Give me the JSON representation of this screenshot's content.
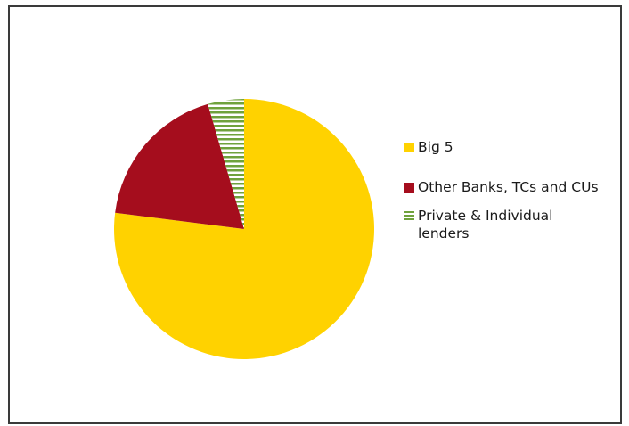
{
  "chart_data": {
    "type": "pie",
    "title": "",
    "slices": [
      {
        "label": "Big 5",
        "value": 77,
        "color": "#FFD200",
        "pattern": "solid"
      },
      {
        "label": "Other Banks, TCs and CUs",
        "value": 18.5,
        "color": "#A50D1D",
        "pattern": "solid"
      },
      {
        "label": "Private & Individual lenders",
        "value": 4.5,
        "color": "#6FA23C",
        "pattern": "horizontal-stripes"
      }
    ],
    "legend": {
      "placement": "right",
      "entries": [
        "Big 5",
        "Other Banks, TCs and CUs",
        "Private & Individual lenders"
      ]
    }
  }
}
